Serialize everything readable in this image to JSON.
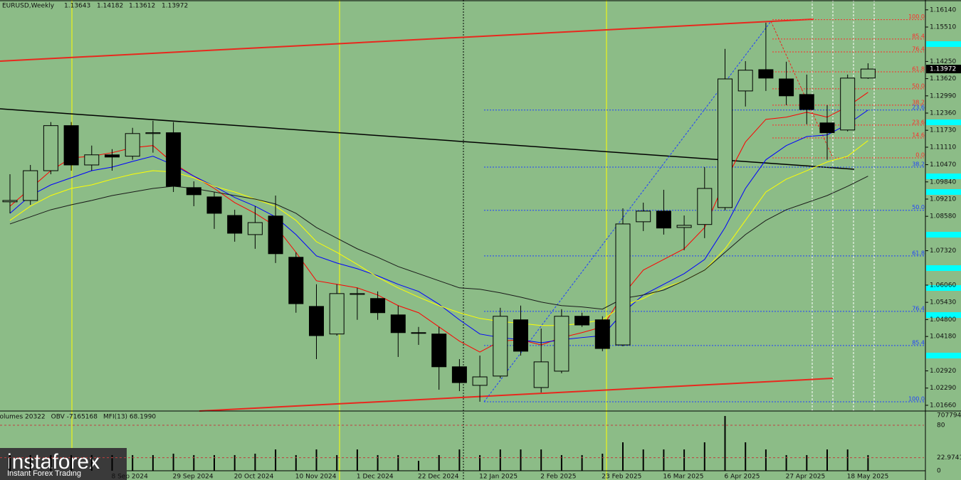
{
  "chart_data": {
    "type": "candlestick",
    "title": "EURUSD,Weekly",
    "categories": [
      null,
      null,
      null,
      null,
      null,
      "8 Sep 2024",
      null,
      null,
      "29 Sep 2024",
      null,
      null,
      "20 Oct 2024",
      null,
      null,
      "10 Nov 2024",
      null,
      null,
      "1 Dec 2024",
      null,
      null,
      "22 Dec 2024",
      null,
      null,
      "12 Jan 2025",
      null,
      null,
      "2 Feb 2025",
      null,
      null,
      "23 Feb 2025",
      null,
      null,
      "16 Mar 2025",
      null,
      null,
      "6 Apr 2025",
      null,
      null,
      "27 Apr 2025",
      null,
      null,
      "18 May 2025",
      null
    ],
    "open": [
      1.0911,
      1.0916,
      1.1025,
      1.119,
      1.1046,
      1.1083,
      1.1078,
      1.1161,
      1.1164,
      1.0963,
      1.0929,
      1.0861,
      1.0791,
      1.0859,
      1.0708,
      1.0528,
      1.0427,
      1.0572,
      1.0557,
      1.0497,
      1.0432,
      1.0427,
      1.0307,
      1.0239,
      1.0273,
      1.0479,
      1.0231,
      1.0291,
      1.0492,
      1.0479,
      1.0387,
      1.0838,
      1.0877,
      1.0817,
      1.0828,
      1.089,
      1.1317,
      1.1395,
      1.1361,
      1.1304,
      1.12,
      1.1174,
      1.13643
    ],
    "high": [
      1.1012,
      1.1046,
      1.1203,
      1.1203,
      1.1117,
      1.1104,
      1.1182,
      1.1208,
      1.1203,
      1.0986,
      1.0947,
      1.0882,
      1.0895,
      1.0934,
      1.0726,
      1.0609,
      1.0609,
      1.0596,
      1.0583,
      1.0531,
      1.0453,
      1.0453,
      1.0335,
      1.0348,
      1.0523,
      1.0531,
      1.0447,
      1.0518,
      1.0505,
      1.0492,
      1.0887,
      1.0908,
      1.0955,
      1.0861,
      1.1038,
      1.1471,
      1.1426,
      1.1567,
      1.1424,
      1.1377,
      1.1265,
      1.1377,
      1.14182
    ],
    "low": [
      1.0869,
      1.09,
      1.1012,
      1.1025,
      1.1025,
      1.1025,
      1.1065,
      1.1091,
      1.0947,
      1.0895,
      1.0812,
      1.0765,
      1.0739,
      1.0687,
      1.0505,
      1.0335,
      1.0421,
      1.0479,
      1.0479,
      1.0343,
      1.0387,
      1.0223,
      1.0218,
      1.0179,
      1.0265,
      1.0348,
      1.0213,
      1.0283,
      1.0453,
      1.0364,
      1.0382,
      1.0804,
      1.0791,
      1.0734,
      1.0778,
      1.088,
      1.126,
      1.1317,
      1.1265,
      1.1195,
      1.1065,
      1.1169,
      1.13612
    ],
    "close": [
      1.0916,
      1.1025,
      1.119,
      1.1046,
      1.1083,
      1.1075,
      1.1161,
      1.1164,
      1.0968,
      1.0937,
      1.0869,
      1.0796,
      1.0835,
      1.0721,
      1.0538,
      1.0421,
      1.0575,
      1.0575,
      1.0505,
      1.0432,
      1.043,
      1.0307,
      1.0249,
      1.027,
      1.0492,
      1.0364,
      1.0325,
      1.0492,
      1.046,
      1.0374,
      1.083,
      1.0877,
      1.0815,
      1.0825,
      1.096,
      1.1361,
      1.1393,
      1.1364,
      1.1299,
      1.1249,
      1.1164,
      1.1364,
      1.13972
    ],
    "up_color": "#8cbc87",
    "down_color": "#000000",
    "ylim": [
      1.0145,
      1.165
    ],
    "yticks": [
      {
        "value": 1.1614,
        "label": "1.16140"
      },
      {
        "value": 1.1551,
        "label": "1.15510"
      },
      {
        "value": 1.1425,
        "label": "1.14250"
      },
      {
        "value": 1.1362,
        "label": "1.13620"
      },
      {
        "value": 1.1299,
        "label": "1.12990"
      },
      {
        "value": 1.1236,
        "label": "1.12360"
      },
      {
        "value": 1.1173,
        "label": "1.11730"
      },
      {
        "value": 1.1111,
        "label": "1.11110"
      },
      {
        "value": 1.1047,
        "label": "1.10470"
      },
      {
        "value": 1.0984,
        "label": "1.09840"
      },
      {
        "value": 1.0921,
        "label": "1.09210"
      },
      {
        "value": 1.0858,
        "label": "1.08580"
      },
      {
        "value": 1.0732,
        "label": "1.07320"
      },
      {
        "value": 1.0606,
        "label": "1.06060"
      },
      {
        "value": 1.0543,
        "label": "1.05430"
      },
      {
        "value": 1.048,
        "label": "1.04800"
      },
      {
        "value": 1.0418,
        "label": "1.04180"
      },
      {
        "value": 1.0292,
        "label": "1.02920"
      },
      {
        "value": 1.0229,
        "label": "1.02290"
      },
      {
        "value": 1.0166,
        "label": "1.01660"
      }
    ],
    "overlays": [
      {
        "color": "#ff0000",
        "values": [
          1.0895,
          1.096,
          1.1025,
          1.1072,
          1.1078,
          1.1091,
          1.1109,
          1.1117,
          1.1052,
          1.1005,
          1.096,
          1.0908,
          1.0869,
          1.0822,
          1.0726,
          1.0622,
          1.0609,
          1.0596,
          1.057,
          1.0531,
          1.0505,
          1.0453,
          1.0401,
          1.0361,
          1.0401,
          1.0406,
          1.0387,
          1.0414,
          1.0432,
          1.0453,
          1.057,
          1.0661,
          1.07,
          1.0739,
          1.0817,
          1.0986,
          1.113,
          1.1213,
          1.1221,
          1.1239,
          1.1221,
          1.126,
          1.1312
        ]
      },
      {
        "color": "#0000ff",
        "values": [
          1.0869,
          1.0934,
          1.0973,
          1.0999,
          1.1025,
          1.1038,
          1.1059,
          1.1078,
          1.1046,
          1.1005,
          1.0968,
          1.0927,
          1.0895,
          1.0856,
          1.0791,
          1.0713,
          1.0687,
          1.0666,
          1.064,
          1.0609,
          1.0583,
          1.0536,
          1.0479,
          1.0427,
          1.0414,
          1.0406,
          1.0395,
          1.0406,
          1.0414,
          1.0421,
          1.0505,
          1.057,
          1.0609,
          1.0648,
          1.07,
          1.0817,
          1.096,
          1.1065,
          1.1117,
          1.115,
          1.1156,
          1.1195,
          1.1247
        ]
      },
      {
        "color": "#ffff00",
        "values": [
          1.0843,
          1.0895,
          1.0934,
          1.096,
          1.0973,
          1.0994,
          1.1012,
          1.1025,
          1.102,
          1.0999,
          1.0968,
          1.0947,
          1.0921,
          1.0895,
          1.0843,
          1.0765,
          1.0726,
          1.0682,
          1.0635,
          1.0596,
          1.0562,
          1.0531,
          1.0505,
          1.0484,
          1.0473,
          1.0466,
          1.0458,
          1.0458,
          1.0466,
          1.0479,
          1.0531,
          1.0557,
          1.0596,
          1.0622,
          1.0661,
          1.0739,
          1.0843,
          1.0947,
          1.0994,
          1.1025,
          1.1057,
          1.1078,
          1.1135
        ]
      },
      {
        "color": "#1a1a1a",
        "values": [
          1.083,
          1.0856,
          1.0882,
          1.09,
          1.0916,
          1.0934,
          1.0947,
          1.096,
          1.0968,
          1.096,
          1.0947,
          1.0934,
          1.0921,
          1.0903,
          1.0869,
          1.0817,
          1.0778,
          1.0739,
          1.0708,
          1.0674,
          1.0648,
          1.0622,
          1.0596,
          1.0591,
          1.0578,
          1.0562,
          1.0544,
          1.0531,
          1.0526,
          1.0518,
          1.0557,
          1.057,
          1.0588,
          1.0622,
          1.0661,
          1.0726,
          1.0791,
          1.0843,
          1.0882,
          1.0908,
          1.0934,
          1.0968,
          1.1005
        ]
      }
    ],
    "fib_levels": [
      {
        "label": "100.0",
        "value": 1.1578,
        "color": "#ff2a2a"
      },
      {
        "label": "85.4",
        "value": 1.1507,
        "color": "#ff2a2a"
      },
      {
        "label": "76.4",
        "value": 1.146,
        "color": "#ff2a2a"
      },
      {
        "label": "61.8",
        "value": 1.1387,
        "color": "#ff2a2a"
      },
      {
        "label": "50.0",
        "value": 1.1325,
        "color": "#ff2a2a"
      },
      {
        "label": "38.2",
        "value": 1.1265,
        "color": "#ff2a2a"
      },
      {
        "label": "23.6",
        "value": 1.1192,
        "color": "#ff2a2a"
      },
      {
        "label": "14.6",
        "value": 1.1145,
        "color": "#ff2a2a"
      },
      {
        "label": "0.0",
        "value": 1.1072,
        "color": "#ff2a2a"
      },
      {
        "label": "23.6",
        "value": 1.1247,
        "color": "#1f3fff"
      },
      {
        "label": "38.2",
        "value": 1.1038,
        "color": "#1f3fff"
      },
      {
        "label": "50.0",
        "value": 1.088,
        "color": "#1f3fff"
      },
      {
        "label": "61.8",
        "value": 1.0713,
        "color": "#1f3fff"
      },
      {
        "label": "76.4",
        "value": 1.051,
        "color": "#1f3fff"
      },
      {
        "label": "85.4",
        "value": 1.0385,
        "color": "#1f3fff"
      },
      {
        "label": "100.0",
        "value": 1.0179,
        "color": "#1f3fff"
      }
    ],
    "indicator_labels": [
      "Volumes 20322",
      "OBV -7165168",
      "MFI(13) 68.1990"
    ],
    "volume": [
      200000,
      200000,
      200000,
      200000,
      200000,
      200000,
      200000,
      200000,
      218000,
      200000,
      200000,
      200000,
      218000,
      272000,
      200000,
      272000,
      200000,
      272000,
      200000,
      200000,
      127000,
      200000,
      272000,
      200000,
      272000,
      272000,
      272000,
      200000,
      200000,
      218000,
      363000,
      272000,
      272000,
      272000,
      363000,
      699000,
      363000,
      272000,
      200000,
      200000,
      272000,
      272000,
      200000
    ],
    "volume_ylim": [
      0,
      707794
    ],
    "volume_yticks": [
      707794,
      0
    ],
    "mfi_ylim": [
      0,
      100
    ],
    "mfi_yticks": [
      80,
      22.9741
    ]
  },
  "branding": {
    "name": "instaforex",
    "tagline": "Instant Forex Trading"
  }
}
